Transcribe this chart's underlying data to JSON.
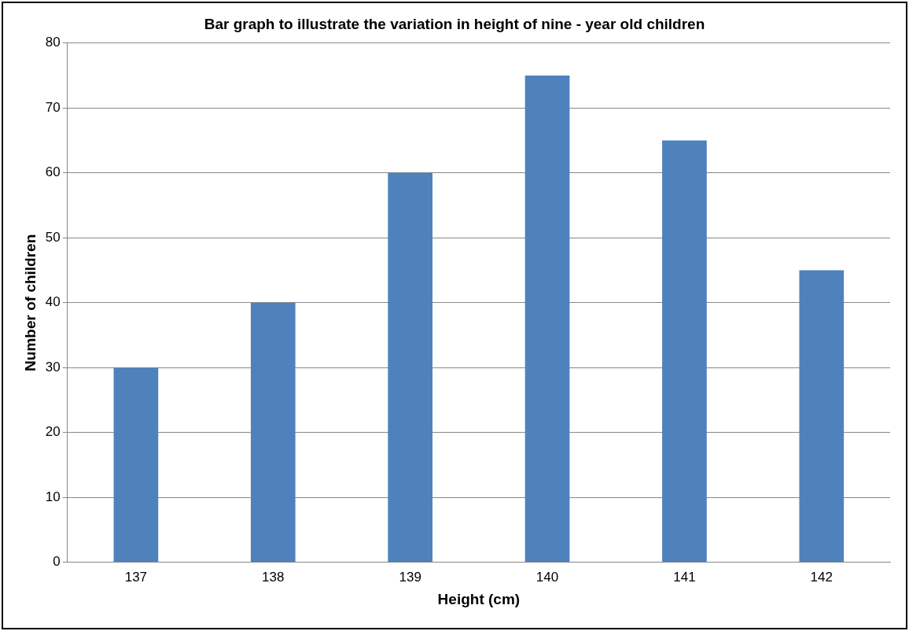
{
  "chart_data": {
    "type": "bar",
    "title": "Bar graph to illustrate the variation in height of nine - year old children",
    "xlabel": "Height (cm)",
    "ylabel": "Number of children",
    "categories": [
      "137",
      "138",
      "139",
      "140",
      "141",
      "142"
    ],
    "values": [
      30,
      40,
      60,
      75,
      65,
      45
    ],
    "color": "#4f81bd",
    "ylim": [
      0,
      80
    ],
    "yticks": [
      0,
      10,
      20,
      30,
      40,
      50,
      60,
      70,
      80
    ],
    "grid": "y",
    "legend": false
  }
}
